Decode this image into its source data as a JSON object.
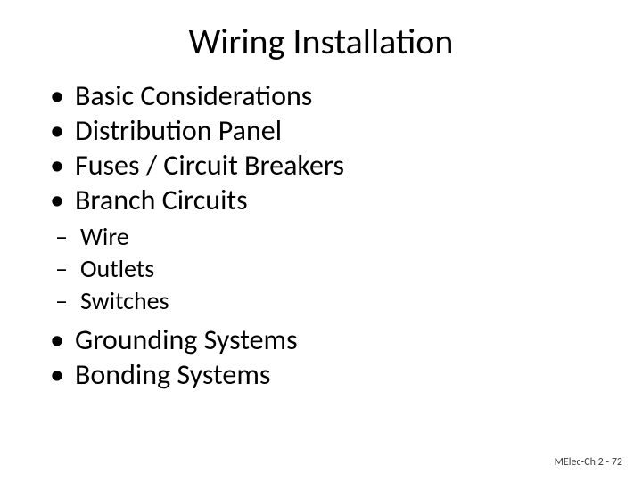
{
  "title": "Wiring Installation",
  "title_fontsize": 40,
  "text_color": "#000000",
  "background_color": "#ffffff",
  "bullets_lvl1_a": [
    "Basic Considerations",
    "Distribution Panel",
    "Fuses / Circuit Breakers",
    "Branch Circuits"
  ],
  "bullets_lvl2": [
    "Wire",
    "Outlets",
    "Switches"
  ],
  "bullets_lvl1_b": [
    "Grounding Systems",
    "Bonding Systems"
  ],
  "lvl1_fontsize": 32,
  "lvl2_fontsize": 28,
  "footer": "MElec-Ch 2 - 72",
  "footer_fontsize": 12,
  "footer_color": "#404040"
}
